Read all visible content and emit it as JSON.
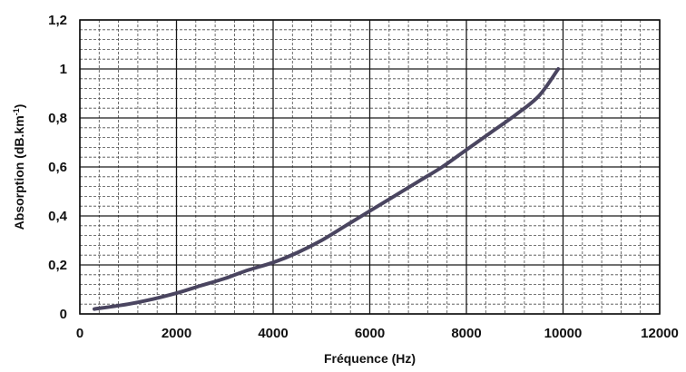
{
  "chart_data": {
    "type": "line",
    "xlabel": "Fréquence (Hz)",
    "ylabel_main": "Absorption (dB.km",
    "ylabel_sup": "-1",
    "ylabel_end": ")",
    "xlim": [
      0,
      12000
    ],
    "ylim": [
      0,
      1.2
    ],
    "x_ticks": [
      0,
      2000,
      4000,
      6000,
      8000,
      10000,
      12000
    ],
    "x_tick_labels": [
      "0",
      "2000",
      "4000",
      "6000",
      "8000",
      "10000",
      "12000"
    ],
    "y_ticks": [
      0,
      0.2,
      0.4,
      0.6,
      0.8,
      1.0,
      1.2
    ],
    "y_tick_labels": [
      "0",
      "0,2",
      "0,4",
      "0,6",
      "0,8",
      "1",
      "1,2"
    ],
    "grid": true,
    "minor_x_per_major": 5,
    "minor_y_per_major": 5,
    "line_color": "#4a4560",
    "series": [
      {
        "x": [
          300,
          1000,
          1500,
          2000,
          2500,
          3000,
          3500,
          4000,
          4500,
          5000,
          5500,
          6000,
          6500,
          7000,
          7500,
          8000,
          8500,
          9000,
          9500,
          9900
        ],
        "y": [
          0.02,
          0.04,
          0.06,
          0.085,
          0.115,
          0.145,
          0.18,
          0.21,
          0.25,
          0.3,
          0.36,
          0.42,
          0.48,
          0.54,
          0.6,
          0.67,
          0.74,
          0.81,
          0.89,
          1.0
        ]
      }
    ]
  }
}
